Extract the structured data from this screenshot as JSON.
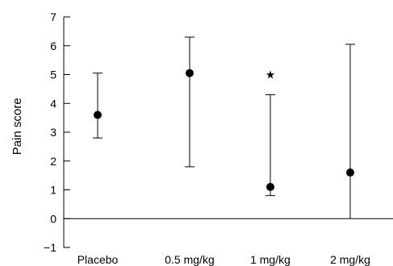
{
  "chart_data": {
    "type": "scatter",
    "title": "",
    "xlabel": "",
    "ylabel": "Pain score",
    "ylim": [
      -1,
      7
    ],
    "yticks": [
      -1,
      0,
      1,
      2,
      3,
      4,
      5,
      6,
      7
    ],
    "grid": false,
    "categories": [
      "Placebo",
      "0.5 mg/kg",
      "1 mg/kg",
      "2 mg/kg"
    ],
    "series": [
      {
        "values": [
          3.6,
          5.05,
          1.1,
          1.6
        ],
        "error_low": [
          2.8,
          1.8,
          0.8,
          0.0
        ],
        "error_high": [
          5.05,
          6.3,
          4.3,
          6.05
        ]
      }
    ],
    "reference_line": 0,
    "annotations": [
      {
        "category": "1 mg/kg",
        "y": 5.0,
        "text": "★"
      }
    ]
  }
}
